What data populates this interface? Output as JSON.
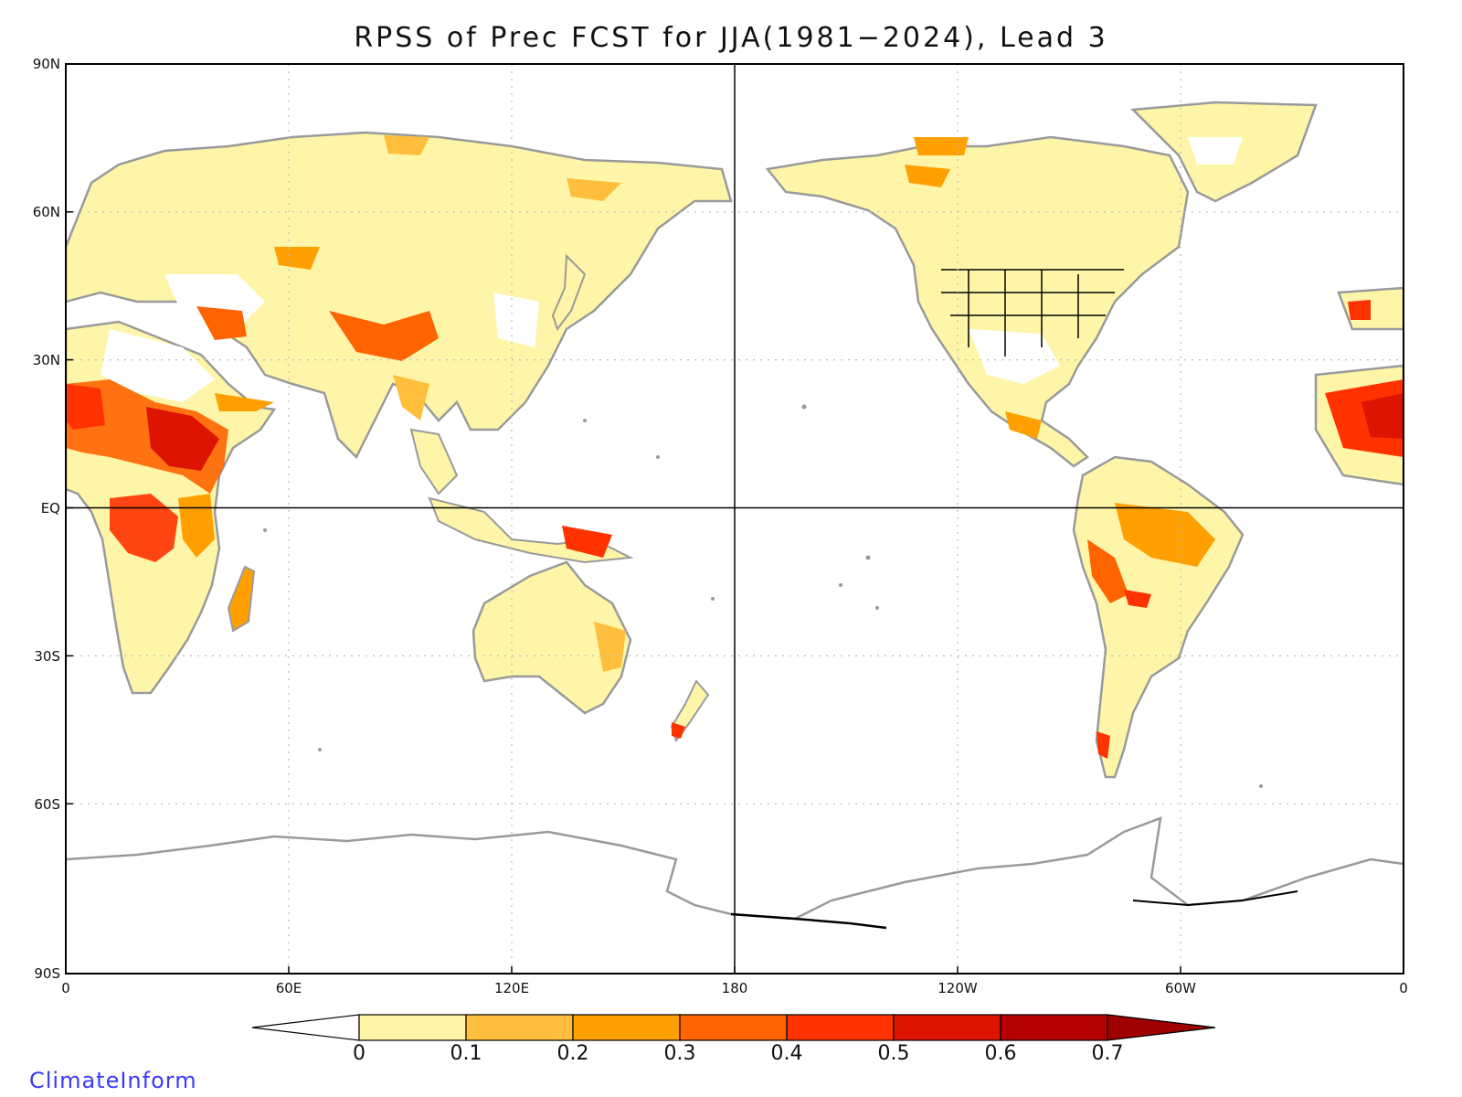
{
  "title": "RPSS of Prec FCST for JJA(1981−2024), Lead 3",
  "lat_labels": [
    "90N",
    "60N",
    "30N",
    "EQ",
    "30S",
    "60S",
    "90S"
  ],
  "lon_labels": [
    "0",
    "60E",
    "120E",
    "180",
    "120W",
    "60W",
    "0"
  ],
  "colorbar": {
    "labels": [
      "0",
      "0.1",
      "0.2",
      "0.3",
      "0.4",
      "0.5",
      "0.6",
      "0.7"
    ],
    "colors": [
      "#ffffff",
      "#fff5a8",
      "#ffbf3c",
      "#ffa000",
      "#ff6400",
      "#ff3200",
      "#dc1400",
      "#b40000",
      "#a00000"
    ]
  },
  "watermark": "ClimateInform",
  "colors": {
    "coastline": "#9a9a9a",
    "lakes": "#000000",
    "grid": "#bbbbbb"
  }
}
